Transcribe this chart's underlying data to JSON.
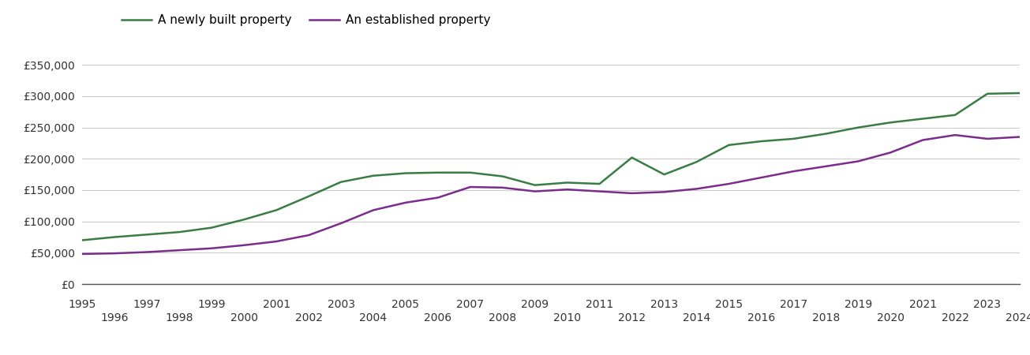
{
  "years": [
    1995,
    1996,
    1997,
    1998,
    1999,
    2000,
    2001,
    2002,
    2003,
    2004,
    2005,
    2006,
    2007,
    2008,
    2009,
    2010,
    2011,
    2012,
    2013,
    2014,
    2015,
    2016,
    2017,
    2018,
    2019,
    2020,
    2021,
    2022,
    2023,
    2024
  ],
  "new_build": [
    70000,
    75000,
    79000,
    83000,
    90000,
    103000,
    118000,
    140000,
    163000,
    173000,
    177000,
    178000,
    178000,
    172000,
    158000,
    162000,
    160000,
    202000,
    175000,
    195000,
    222000,
    228000,
    232000,
    240000,
    250000,
    258000,
    264000,
    270000,
    304000,
    305000
  ],
  "established": [
    48000,
    49000,
    51000,
    54000,
    57000,
    62000,
    68000,
    78000,
    97000,
    118000,
    130000,
    138000,
    155000,
    154000,
    148000,
    151000,
    148000,
    145000,
    147000,
    152000,
    160000,
    170000,
    180000,
    188000,
    196000,
    210000,
    230000,
    238000,
    232000,
    235000
  ],
  "new_build_color": "#3a7d44",
  "established_color": "#7b2d8b",
  "legend_labels": [
    "A newly built property",
    "An established property"
  ],
  "ylim": [
    0,
    380000
  ],
  "yticks": [
    0,
    50000,
    100000,
    150000,
    200000,
    250000,
    300000,
    350000
  ],
  "background_color": "#ffffff",
  "grid_color": "#cccccc",
  "line_width": 1.8,
  "tick_fontsize": 10,
  "legend_fontsize": 11
}
